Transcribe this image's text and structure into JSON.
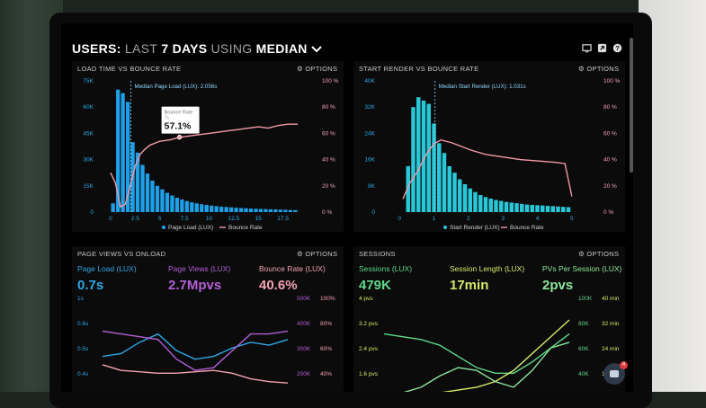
{
  "header": {
    "prefix": "USERS:",
    "range": "LAST",
    "days": "7 DAYS",
    "using": "USING",
    "metric": "MEDIAN"
  },
  "icons": [
    "monitor-icon",
    "share-icon",
    "help-icon",
    "chevron-down-icon",
    "gear-icon",
    "chat-icon"
  ],
  "panels": {
    "load": {
      "title": "LOAD TIME VS BOUNCE RATE",
      "options": "OPTIONS",
      "marker_label": "Median Page Load (LUX): 2.056s",
      "tooltip_label": "Bounce Rate",
      "tooltip_sub": "7s",
      "tooltip_value": "57.1%",
      "legend": [
        "Page Load (LUX)",
        "Bounce Rate"
      ]
    },
    "render": {
      "title": "START RENDER VS BOUNCE RATE",
      "options": "OPTIONS",
      "marker_label": "Median Start Render (LUX): 1.031s",
      "legend": [
        "Start Render (LUX)",
        "Bounce Rate"
      ]
    },
    "pageviews": {
      "title": "PAGE VIEWS VS ONLOAD",
      "options": "OPTIONS",
      "kpis": [
        {
          "label": "Page Load (LUX)",
          "value": "0.7s",
          "color": "#2ea8e6"
        },
        {
          "label": "Page Views (LUX)",
          "value": "2.7Mpvs",
          "color": "#b35fd6"
        },
        {
          "label": "Bounce Rate (LUX)",
          "value": "40.6%",
          "color": "#f2a2b2"
        }
      ],
      "left_ticks": [
        "1s",
        "0.6s",
        "0.5s",
        "0.4s"
      ],
      "mid_ticks": [
        "500K",
        "400K",
        "300K",
        "200K"
      ],
      "right_ticks": [
        "100%",
        "80%",
        "60%",
        "40%"
      ]
    },
    "sessions": {
      "title": "SESSIONS",
      "options": "OPTIONS",
      "kpis": [
        {
          "label": "Sessions (LUX)",
          "value": "479K",
          "color": "#5ed98a"
        },
        {
          "label": "Session Length (LUX)",
          "value": "17min",
          "color": "#d6e86a"
        },
        {
          "label": "PVs Per Session (LUX)",
          "value": "2pvs",
          "color": "#8ee89a"
        }
      ],
      "left_ticks": [
        "4 pvs",
        "3.2 pvs",
        "2.4 pvs",
        "1.6 pvs"
      ],
      "mid_ticks": [
        "100K",
        "80K",
        "60K",
        "40K"
      ],
      "right_ticks": [
        "40 min",
        "32 min",
        "24 min",
        "16 min"
      ]
    }
  },
  "chat_badge": "4",
  "chart_data": [
    {
      "type": "bar",
      "title": "LOAD TIME VS BOUNCE RATE",
      "x_ticks": [
        "0",
        "2.5",
        "5",
        "7.5",
        "10",
        "12.5",
        "15",
        "17.5"
      ],
      "y_ticks": [
        "75K",
        "60K",
        "45K",
        "30K",
        "15K",
        "0"
      ],
      "y2_ticks": [
        "100 %",
        "80 %",
        "60 %",
        "40 %",
        "20 %",
        "0 %"
      ],
      "xlim": [
        -1,
        20
      ],
      "ylim": [
        0,
        75000
      ],
      "y2lim": [
        0,
        100
      ],
      "series": [
        {
          "name": "Page Load (LUX)",
          "x": [
            0.25,
            0.75,
            1.25,
            1.75,
            2.25,
            2.75,
            3.25,
            3.75,
            4.25,
            4.75,
            5.25,
            5.75,
            6.25,
            6.75,
            7.25,
            7.75,
            8.25,
            8.75,
            9.25,
            9.75,
            10.25,
            10.75,
            11.25,
            11.75,
            12.25,
            12.75,
            13.25,
            13.75,
            14.25,
            14.75,
            15.25,
            15.75,
            16.25,
            16.75,
            17.25,
            17.75,
            18.25,
            18.75
          ],
          "values": [
            5000,
            70000,
            68000,
            63000,
            40000,
            34000,
            27000,
            22000,
            18000,
            15000,
            13000,
            11000,
            9500,
            8200,
            7200,
            6300,
            5600,
            5000,
            4500,
            4100,
            3700,
            3400,
            3100,
            2900,
            2700,
            2500,
            2300,
            2200,
            2000,
            1900,
            1800,
            1700,
            1600,
            1500,
            1400,
            1300,
            1200,
            1100
          ]
        },
        {
          "name": "Bounce Rate",
          "x": [
            0,
            0.5,
            1,
            1.5,
            2,
            2.5,
            3,
            3.5,
            4,
            5,
            6,
            7,
            8,
            9,
            10,
            11,
            12,
            13,
            14,
            15,
            16,
            17,
            18,
            19
          ],
          "values": [
            30,
            22,
            4,
            6,
            20,
            35,
            44,
            48,
            51,
            54,
            55,
            57,
            58,
            59,
            60,
            61,
            62,
            63,
            64,
            65,
            64,
            66,
            67,
            67
          ]
        }
      ],
      "marker_x": 2.056
    },
    {
      "type": "bar",
      "title": "START RENDER VS BOUNCE RATE",
      "x_ticks": [
        "0",
        "1",
        "2",
        "3",
        "4",
        "5"
      ],
      "y_ticks": [
        "40K",
        "32K",
        "24K",
        "16K",
        "8K",
        "0"
      ],
      "y2_ticks": [
        "100 %",
        "80 %",
        "60 %",
        "40 %",
        "20 %",
        "0 %"
      ],
      "xlim": [
        -0.5,
        5.5
      ],
      "ylim": [
        0,
        40000
      ],
      "y2lim": [
        0,
        100
      ],
      "series": [
        {
          "name": "Start Render (LUX)",
          "x": [
            0.25,
            0.4,
            0.55,
            0.7,
            0.85,
            1.0,
            1.15,
            1.3,
            1.45,
            1.6,
            1.75,
            1.9,
            2.05,
            2.2,
            2.35,
            2.5,
            2.65,
            2.8,
            2.95,
            3.1,
            3.25,
            3.4,
            3.55,
            3.7,
            3.85,
            4.0,
            4.15,
            4.3,
            4.45,
            4.6,
            4.75,
            4.9
          ],
          "values": [
            14000,
            32000,
            35000,
            34000,
            33000,
            27000,
            21000,
            18000,
            14000,
            12000,
            10000,
            8500,
            7200,
            6100,
            5200,
            4600,
            4100,
            3700,
            3400,
            3100,
            2900,
            2700,
            2500,
            2300,
            2200,
            2100,
            2000,
            1900,
            1800,
            1700,
            1600,
            1500
          ]
        },
        {
          "name": "Bounce Rate",
          "x": [
            0.1,
            0.3,
            0.5,
            0.8,
            1.0,
            1.2,
            1.5,
            1.8,
            2.1,
            2.5,
            3.0,
            3.5,
            4.0,
            4.5,
            4.8,
            5.0
          ],
          "values": [
            10,
            22,
            30,
            45,
            52,
            55,
            53,
            50,
            47,
            44,
            42,
            40,
            39,
            38,
            37,
            12
          ]
        }
      ],
      "marker_x": 1.031
    },
    {
      "type": "line",
      "title": "PAGE VIEWS VS ONLOAD",
      "series": [
        {
          "name": "Page Load (LUX)",
          "x": [
            0,
            1,
            2,
            3,
            4,
            5,
            6,
            7,
            8,
            9,
            10
          ],
          "values": [
            0.47,
            0.48,
            0.52,
            0.55,
            0.49,
            0.46,
            0.47,
            0.5,
            0.52,
            0.51,
            0.53
          ]
        },
        {
          "name": "Page Views (LUX)",
          "x": [
            0,
            1,
            2,
            3,
            4,
            5,
            6,
            7,
            8,
            9,
            10
          ],
          "values": [
            0.56,
            0.55,
            0.54,
            0.53,
            0.46,
            0.42,
            0.43,
            0.49,
            0.55,
            0.55,
            0.56
          ]
        },
        {
          "name": "Bounce Rate (LUX)",
          "x": [
            0,
            1,
            2,
            3,
            4,
            5,
            6,
            7,
            8,
            9,
            10
          ],
          "values": [
            0.44,
            0.42,
            0.415,
            0.41,
            0.41,
            0.415,
            0.42,
            0.41,
            0.39,
            0.38,
            0.375
          ]
        }
      ]
    },
    {
      "type": "line",
      "title": "SESSIONS",
      "series": [
        {
          "name": "Sessions (LUX)",
          "x": [
            0,
            1,
            2,
            3,
            4,
            5,
            6,
            7,
            8,
            9,
            10
          ],
          "values": [
            0.55,
            0.54,
            0.53,
            0.51,
            0.47,
            0.43,
            0.41,
            0.41,
            0.45,
            0.5,
            0.55
          ]
        },
        {
          "name": "Session Length (LUX)",
          "x": [
            0,
            1,
            2,
            3,
            4,
            5,
            6,
            7,
            8,
            9,
            10
          ],
          "values": [
            0.3,
            0.32,
            0.33,
            0.34,
            0.35,
            0.36,
            0.38,
            0.42,
            0.48,
            0.54,
            0.6
          ]
        },
        {
          "name": "PVs Per Session (LUX)",
          "x": [
            0,
            1,
            2,
            3,
            4,
            5,
            6,
            7,
            8,
            9,
            10
          ],
          "values": [
            0.34,
            0.34,
            0.36,
            0.4,
            0.43,
            0.42,
            0.38,
            0.36,
            0.42,
            0.5,
            0.52
          ]
        }
      ]
    }
  ]
}
